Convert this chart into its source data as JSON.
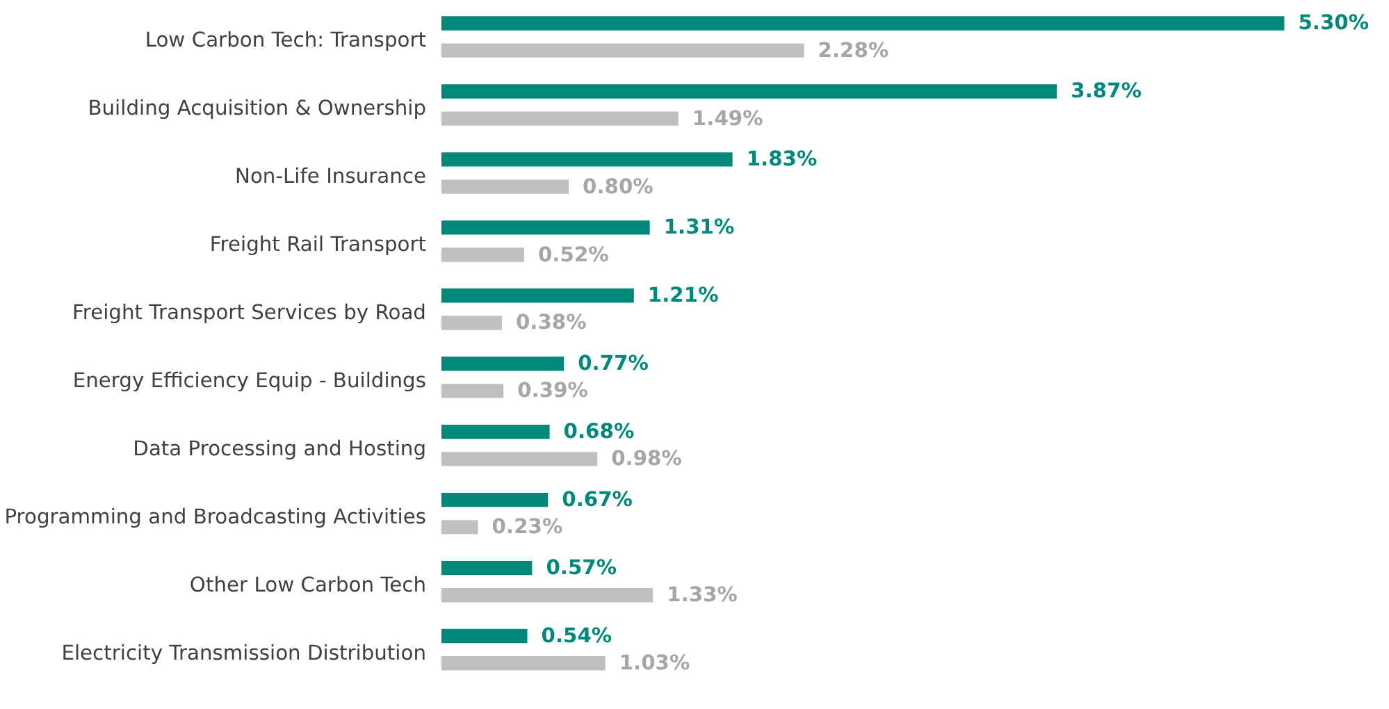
{
  "chart_data": {
    "type": "bar",
    "orientation": "horizontal",
    "tick_labels": "y",
    "grid": false,
    "categories": [
      "Low Carbon Tech: Transport",
      "Building Acquisition & Ownership",
      "Non-Life Insurance",
      "Freight Rail Transport",
      "Freight Transport Services by Road",
      "Energy Efficiency Equip - Buildings",
      "Data Processing and Hosting",
      "Programming and Broadcasting Activities",
      "Other Low Carbon Tech",
      "Electricity Transmission Distribution"
    ],
    "series": [
      {
        "color": "#00897b",
        "values": [
          5.3,
          3.87,
          1.83,
          1.31,
          1.21,
          0.77,
          0.68,
          0.67,
          0.57,
          0.54
        ],
        "value_labels": [
          "5.30%",
          "3.87%",
          "1.83%",
          "1.31%",
          "1.21%",
          "0.77%",
          "0.68%",
          "0.67%",
          "0.57%",
          "0.54%"
        ]
      },
      {
        "color": "#bfbfbf",
        "values": [
          2.28,
          1.49,
          0.8,
          0.52,
          0.38,
          0.39,
          0.98,
          0.23,
          1.33,
          1.03
        ],
        "value_labels": [
          "2.28%",
          "1.49%",
          "0.80%",
          "0.52%",
          "0.38%",
          "0.39%",
          "0.98%",
          "0.23%",
          "1.33%",
          "1.03%"
        ]
      }
    ]
  }
}
